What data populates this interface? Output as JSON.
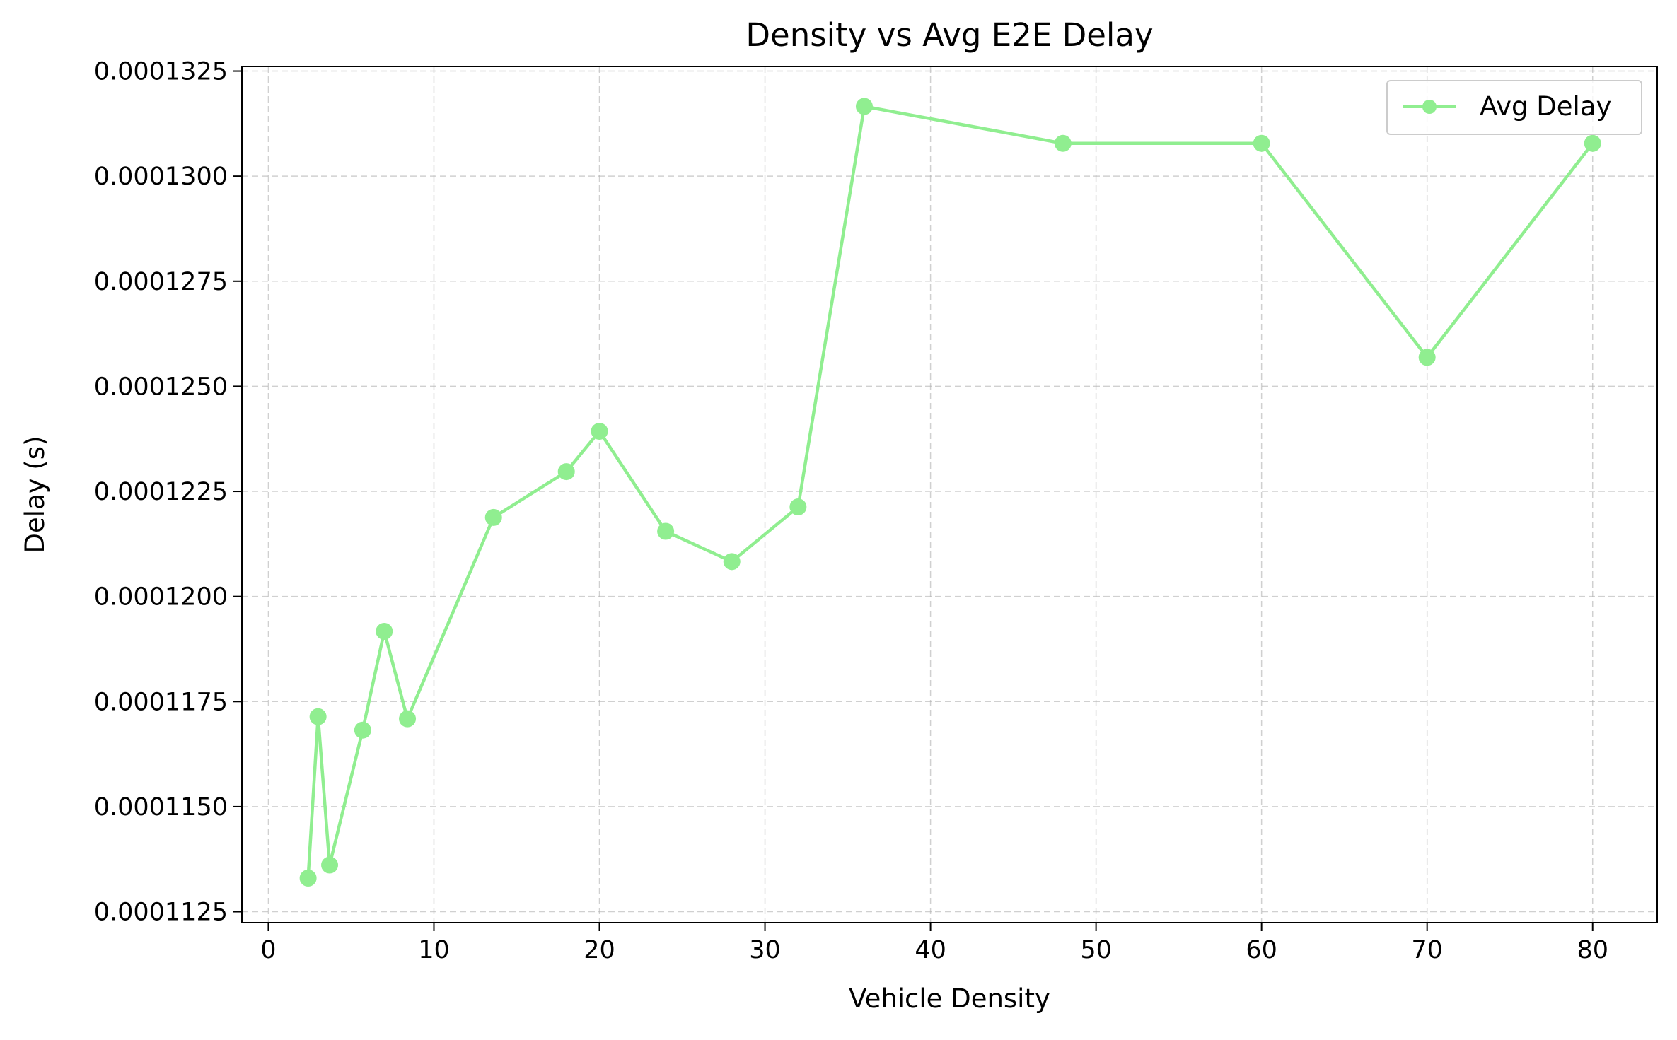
{
  "chart_data": {
    "type": "line",
    "title": "Density vs Avg E2E Delay",
    "xlabel": "Vehicle Density",
    "ylabel": "Delay (s)",
    "xlim": [
      -1.6,
      83.9
    ],
    "ylim": [
      0.00011224,
      0.00013261
    ],
    "xticks": [
      0,
      10,
      20,
      30,
      40,
      50,
      60,
      70,
      80
    ],
    "xtick_labels": [
      "0",
      "10",
      "20",
      "30",
      "40",
      "50",
      "60",
      "70",
      "80"
    ],
    "yticks": [
      0.0001125,
      0.000115,
      0.0001175,
      0.00012,
      0.0001225,
      0.000125,
      0.0001275,
      0.00013,
      0.0001325
    ],
    "ytick_labels": [
      "0.0001125",
      "0.0001150",
      "0.0001175",
      "0.0001200",
      "0.0001225",
      "0.0001250",
      "0.0001275",
      "0.0001300",
      "0.0001325"
    ],
    "grid": true,
    "legend_position": "top-right",
    "series": [
      {
        "name": "Avg Delay",
        "color": "#90EE90",
        "marker": "circle",
        "x": [
          2.4,
          3.0,
          3.7,
          5.7,
          7.0,
          8.4,
          13.6,
          18.0,
          20.0,
          24.0,
          28.0,
          32.0,
          36.0,
          48.0,
          60.0,
          70.0,
          80.0
        ],
        "y": [
          0.0001133,
          0.00011714,
          0.00011361,
          0.00011682,
          0.00011917,
          0.00011709,
          0.00012188,
          0.00012297,
          0.00012393,
          0.00012155,
          0.00012083,
          0.00012213,
          0.00013166,
          0.00013078,
          0.00013078,
          0.00012569,
          0.00013078
        ]
      }
    ]
  }
}
